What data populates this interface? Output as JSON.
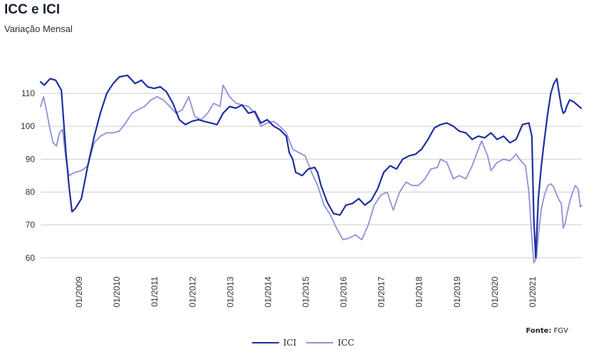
{
  "header": {
    "title": "ICC e ICI",
    "subtitle": "Variação Mensal"
  },
  "source": {
    "label": "Fonte:",
    "value": "FGV"
  },
  "colors": {
    "ICI": "#1f2f9e",
    "ICC": "#8f91d9",
    "grid": "#cfcfcf"
  },
  "chart_data": {
    "type": "line",
    "title": "ICC e ICI",
    "subtitle": "Variação Mensal",
    "ylim": [
      58,
      115
    ],
    "yticks": [
      60,
      70,
      80,
      90,
      100,
      110
    ],
    "xlim": [
      2008.0,
      2021.92
    ],
    "xticks": [
      "01/2009",
      "01/2010",
      "01/2011",
      "01/2012",
      "01/2013",
      "01/2014",
      "01/2015",
      "01/2016",
      "01/2017",
      "01/2018",
      "01/2019",
      "01/2020",
      "01/2021"
    ],
    "grid": true,
    "legend_position": "bottom",
    "series": [
      {
        "name": "ICI",
        "points": [
          [
            2008.0,
            113.5
          ],
          [
            2008.1,
            112.5
          ],
          [
            2008.25,
            114.5
          ],
          [
            2008.4,
            114.0
          ],
          [
            2008.55,
            111.0
          ],
          [
            2008.67,
            92.0
          ],
          [
            2008.75,
            82.0
          ],
          [
            2008.83,
            74.0
          ],
          [
            2008.92,
            75.0
          ],
          [
            2009.08,
            78.0
          ],
          [
            2009.25,
            88.0
          ],
          [
            2009.42,
            97.0
          ],
          [
            2009.58,
            104.0
          ],
          [
            2009.75,
            110.0
          ],
          [
            2009.92,
            113.0
          ],
          [
            2010.08,
            115.0
          ],
          [
            2010.3,
            115.5
          ],
          [
            2010.5,
            113.0
          ],
          [
            2010.67,
            114.0
          ],
          [
            2010.83,
            112.0
          ],
          [
            2011.0,
            111.5
          ],
          [
            2011.17,
            112.0
          ],
          [
            2011.33,
            110.5
          ],
          [
            2011.5,
            107.0
          ],
          [
            2011.67,
            102.0
          ],
          [
            2011.83,
            100.5
          ],
          [
            2012.0,
            101.5
          ],
          [
            2012.17,
            102.0
          ],
          [
            2012.33,
            101.5
          ],
          [
            2012.5,
            101.0
          ],
          [
            2012.67,
            100.5
          ],
          [
            2012.83,
            104.0
          ],
          [
            2013.0,
            106.0
          ],
          [
            2013.17,
            105.5
          ],
          [
            2013.33,
            106.5
          ],
          [
            2013.5,
            104.0
          ],
          [
            2013.67,
            104.5
          ],
          [
            2013.83,
            101.0
          ],
          [
            2014.0,
            102.0
          ],
          [
            2014.17,
            100.0
          ],
          [
            2014.33,
            99.0
          ],
          [
            2014.5,
            97.0
          ],
          [
            2014.58,
            92.0
          ],
          [
            2014.67,
            90.0
          ],
          [
            2014.75,
            86.0
          ],
          [
            2014.92,
            85.0
          ],
          [
            2015.08,
            87.0
          ],
          [
            2015.25,
            87.5
          ],
          [
            2015.33,
            86.0
          ],
          [
            2015.42,
            82.0
          ],
          [
            2015.58,
            77.0
          ],
          [
            2015.75,
            73.5
          ],
          [
            2015.92,
            73.0
          ],
          [
            2016.08,
            76.0
          ],
          [
            2016.25,
            76.5
          ],
          [
            2016.42,
            78.0
          ],
          [
            2016.58,
            76.0
          ],
          [
            2016.75,
            77.5
          ],
          [
            2016.92,
            81.0
          ],
          [
            2017.08,
            86.0
          ],
          [
            2017.25,
            88.0
          ],
          [
            2017.42,
            87.0
          ],
          [
            2017.58,
            90.0
          ],
          [
            2017.75,
            91.0
          ],
          [
            2017.92,
            91.5
          ],
          [
            2018.08,
            93.0
          ],
          [
            2018.25,
            96.0
          ],
          [
            2018.42,
            99.5
          ],
          [
            2018.58,
            100.5
          ],
          [
            2018.75,
            101.0
          ],
          [
            2018.92,
            100.0
          ],
          [
            2019.08,
            98.5
          ],
          [
            2019.25,
            98.0
          ],
          [
            2019.42,
            96.0
          ],
          [
            2019.58,
            97.0
          ],
          [
            2019.75,
            96.5
          ],
          [
            2019.92,
            98.0
          ],
          [
            2020.08,
            96.0
          ],
          [
            2020.25,
            97.0
          ],
          [
            2020.42,
            95.0
          ],
          [
            2020.58,
            96.0
          ],
          [
            2020.75,
            100.5
          ],
          [
            2020.92,
            101.0
          ],
          [
            2021.0,
            97.0
          ],
          [
            2021.05,
            72.0
          ],
          [
            2021.1,
            60.0
          ],
          [
            2021.17,
            78.0
          ],
          [
            2021.25,
            88.0
          ],
          [
            2021.33,
            96.0
          ],
          [
            2021.42,
            104.0
          ],
          [
            2021.5,
            110.0
          ],
          [
            2021.58,
            113.0
          ],
          [
            2021.66,
            114.5
          ],
          [
            2021.72,
            110.0
          ],
          [
            2021.78,
            106.0
          ],
          [
            2021.83,
            104.0
          ],
          [
            2021.88,
            104.5
          ],
          [
            2021.92,
            106.0
          ],
          [
            2022.0,
            108.0
          ],
          [
            2022.1,
            107.5
          ],
          [
            2022.2,
            106.5
          ],
          [
            2022.3,
            105.5
          ]
        ]
      },
      {
        "name": "ICC",
        "points": [
          [
            2008.0,
            106.0
          ],
          [
            2008.08,
            109.0
          ],
          [
            2008.17,
            104.0
          ],
          [
            2008.25,
            99.0
          ],
          [
            2008.33,
            95.0
          ],
          [
            2008.42,
            94.0
          ],
          [
            2008.5,
            98.0
          ],
          [
            2008.58,
            99.0
          ],
          [
            2008.67,
            90.0
          ],
          [
            2008.75,
            85.0
          ],
          [
            2008.83,
            85.5
          ],
          [
            2008.92,
            86.0
          ],
          [
            2009.08,
            86.5
          ],
          [
            2009.25,
            88.0
          ],
          [
            2009.42,
            95.0
          ],
          [
            2009.58,
            97.0
          ],
          [
            2009.75,
            98.0
          ],
          [
            2009.92,
            98.0
          ],
          [
            2010.08,
            98.5
          ],
          [
            2010.25,
            101.0
          ],
          [
            2010.42,
            104.0
          ],
          [
            2010.58,
            105.0
          ],
          [
            2010.75,
            106.0
          ],
          [
            2010.92,
            108.0
          ],
          [
            2011.08,
            109.0
          ],
          [
            2011.25,
            108.0
          ],
          [
            2011.42,
            106.0
          ],
          [
            2011.58,
            104.0
          ],
          [
            2011.75,
            105.0
          ],
          [
            2011.92,
            109.0
          ],
          [
            2012.08,
            103.0
          ],
          [
            2012.25,
            102.0
          ],
          [
            2012.42,
            104.0
          ],
          [
            2012.58,
            107.0
          ],
          [
            2012.75,
            106.0
          ],
          [
            2012.83,
            112.5
          ],
          [
            2013.0,
            109.0
          ],
          [
            2013.17,
            107.0
          ],
          [
            2013.33,
            106.5
          ],
          [
            2013.5,
            106.0
          ],
          [
            2013.67,
            104.0
          ],
          [
            2013.83,
            100.0
          ],
          [
            2014.0,
            101.0
          ],
          [
            2014.17,
            101.5
          ],
          [
            2014.33,
            100.0
          ],
          [
            2014.5,
            98.0
          ],
          [
            2014.67,
            93.0
          ],
          [
            2014.83,
            92.0
          ],
          [
            2015.0,
            91.0
          ],
          [
            2015.17,
            86.0
          ],
          [
            2015.33,
            82.0
          ],
          [
            2015.5,
            76.0
          ],
          [
            2015.67,
            73.0
          ],
          [
            2015.83,
            69.0
          ],
          [
            2016.0,
            65.5
          ],
          [
            2016.17,
            66.0
          ],
          [
            2016.33,
            67.0
          ],
          [
            2016.5,
            65.5
          ],
          [
            2016.67,
            70.0
          ],
          [
            2016.83,
            76.0
          ],
          [
            2017.0,
            79.0
          ],
          [
            2017.17,
            80.0
          ],
          [
            2017.33,
            74.5
          ],
          [
            2017.5,
            80.0
          ],
          [
            2017.67,
            83.0
          ],
          [
            2017.83,
            82.0
          ],
          [
            2018.0,
            82.0
          ],
          [
            2018.17,
            84.0
          ],
          [
            2018.33,
            87.0
          ],
          [
            2018.5,
            87.5
          ],
          [
            2018.58,
            90.0
          ],
          [
            2018.75,
            89.0
          ],
          [
            2018.92,
            84.0
          ],
          [
            2019.08,
            85.0
          ],
          [
            2019.25,
            84.0
          ],
          [
            2019.42,
            88.0
          ],
          [
            2019.58,
            93.0
          ],
          [
            2019.67,
            95.5
          ],
          [
            2019.83,
            91.0
          ],
          [
            2019.92,
            86.5
          ],
          [
            2020.08,
            89.0
          ],
          [
            2020.25,
            90.0
          ],
          [
            2020.42,
            89.5
          ],
          [
            2020.58,
            91.5
          ],
          [
            2020.67,
            90.0
          ],
          [
            2020.83,
            88.0
          ],
          [
            2020.92,
            80.0
          ],
          [
            2021.0,
            66.0
          ],
          [
            2021.05,
            58.5
          ],
          [
            2021.12,
            60.0
          ],
          [
            2021.17,
            67.0
          ],
          [
            2021.25,
            75.0
          ],
          [
            2021.33,
            79.0
          ],
          [
            2021.42,
            82.0
          ],
          [
            2021.5,
            82.5
          ],
          [
            2021.58,
            81.5
          ],
          [
            2021.66,
            79.0
          ],
          [
            2021.72,
            77.5
          ],
          [
            2021.78,
            76.5
          ],
          [
            2021.83,
            69.0
          ],
          [
            2021.88,
            70.5
          ],
          [
            2021.92,
            73.0
          ],
          [
            2022.0,
            77.0
          ],
          [
            2022.08,
            80.0
          ],
          [
            2022.15,
            82.0
          ],
          [
            2022.22,
            81.0
          ],
          [
            2022.28,
            75.5
          ],
          [
            2022.32,
            76.0
          ]
        ]
      }
    ]
  }
}
